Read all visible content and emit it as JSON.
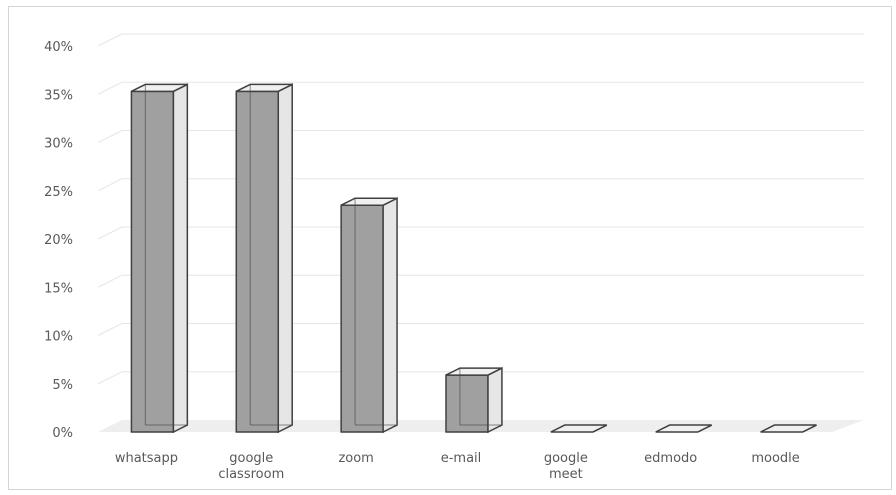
{
  "chart_data": {
    "type": "bar",
    "style": "3d-column",
    "categories": [
      [
        "whatsapp"
      ],
      [
        "google",
        "classroom"
      ],
      [
        "zoom"
      ],
      [
        "e-mail"
      ],
      [
        "google",
        "meet"
      ],
      [
        "edmodo"
      ],
      [
        "moodle"
      ]
    ],
    "values": [
      35.3,
      35.3,
      23.5,
      5.9,
      0,
      0,
      0
    ],
    "y_ticks": [
      "0%",
      "5%",
      "10%",
      "15%",
      "20%",
      "25%",
      "30%",
      "35%",
      "40%"
    ],
    "ylim": [
      0,
      40
    ],
    "grid": true,
    "legend": "none",
    "colors": {
      "bar_front": "#a0a0a0",
      "bar_side": "#e6e6e6",
      "bar_top": "#f0f0f0",
      "bar_edge": "#404040",
      "floor": "#eeeeee",
      "grid": "#e6e6e6",
      "text": "#595959"
    }
  }
}
